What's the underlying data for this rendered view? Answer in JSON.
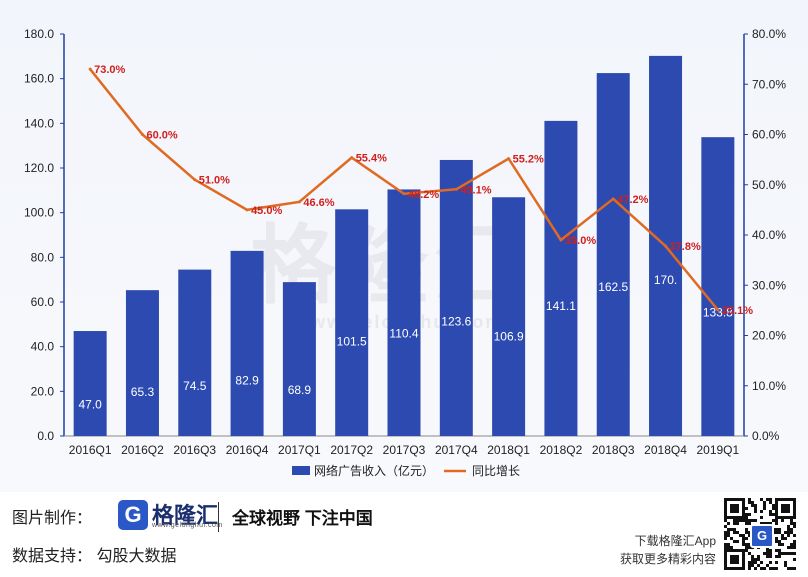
{
  "chart_data": {
    "type": "bar+line",
    "categories": [
      "2016Q1",
      "2016Q2",
      "2016Q3",
      "2016Q4",
      "2017Q1",
      "2017Q2",
      "2017Q3",
      "2017Q4",
      "2018Q1",
      "2018Q2",
      "2018Q3",
      "2018Q4",
      "2019Q1"
    ],
    "series": [
      {
        "name": "网络广告收入（亿元）",
        "type": "bar",
        "axis": "left",
        "color": "#2c4ab0",
        "values": [
          47.0,
          65.3,
          74.5,
          82.9,
          68.9,
          101.5,
          110.4,
          123.6,
          106.9,
          141.1,
          162.5,
          170.2,
          133.8
        ],
        "labels": [
          "47.0",
          "65.3",
          "74.5",
          "82.9",
          "68.9",
          "101.5",
          "110.4",
          "123.6",
          "106.9",
          "141.1",
          "162.5",
          "170.",
          "133.8"
        ]
      },
      {
        "name": "同比增长",
        "type": "line",
        "axis": "right",
        "color": "#e06a22",
        "values": [
          73.0,
          60.0,
          51.0,
          45.0,
          46.6,
          55.4,
          48.2,
          49.1,
          55.2,
          39.0,
          47.2,
          37.8,
          25.1
        ],
        "labels": [
          "73.0%",
          "60.0%",
          "51.0%",
          "45.0%",
          "46.6%",
          "55.4%",
          "48.2%",
          "49.1%",
          "55.2%",
          "39.0%",
          "47.2%",
          "37.8%",
          "25.1%"
        ]
      }
    ],
    "y_left": {
      "min": 0,
      "max": 180,
      "step": 20,
      "ticks": [
        "0.0",
        "20.0",
        "40.0",
        "60.0",
        "80.0",
        "100.0",
        "120.0",
        "140.0",
        "160.0",
        "180.0"
      ]
    },
    "y_right": {
      "min": 0,
      "max": 80,
      "step": 10,
      "ticks": [
        "0.0%",
        "10.0%",
        "20.0%",
        "30.0%",
        "40.0%",
        "50.0%",
        "60.0%",
        "70.0%",
        "80.0%"
      ]
    },
    "legend_position": "bottom-center",
    "label_color": "#d0201c"
  },
  "watermark": {
    "text": "格隆汇",
    "url": "www.gelonghui.com"
  },
  "footer": {
    "made_by_label": "图片制作：",
    "logo_letter": "G",
    "logo_name": "格隆汇",
    "logo_url": "www.gelonghui.com",
    "slogan": "全球视野 下注中国",
    "data_support_label": "数据支持：",
    "data_support_value": "勾股大数据",
    "download_text": "下载格隆汇App",
    "more_text": "获取更多精彩内容",
    "qr_center": "G"
  }
}
